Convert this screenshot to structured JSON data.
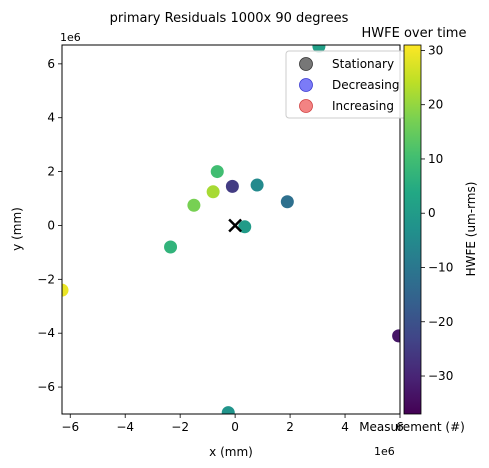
{
  "chart_data": {
    "type": "scatter",
    "title": "primary Residuals 1000x 90 degrees",
    "xlabel": "x (mm)",
    "ylabel": "y (mm)",
    "x_exponent_label": "1e6",
    "y_exponent_label": "1e6",
    "xlim": [
      -6.3,
      6.0
    ],
    "ylim": [
      -7.0,
      6.7
    ],
    "xticks": [
      -6,
      -4,
      -2,
      0,
      2,
      4,
      6
    ],
    "yticks": [
      -6,
      -4,
      -2,
      0,
      2,
      4,
      6
    ],
    "xtick_labels": [
      "−6",
      "−4",
      "−2",
      "0",
      "2",
      "4",
      "6"
    ],
    "ytick_labels": [
      "−6",
      "−4",
      "−2",
      "0",
      "2",
      "4",
      "6"
    ],
    "points": [
      {
        "x": 3.05,
        "y": 6.65,
        "value": 1
      },
      {
        "x": -0.65,
        "y": 2.0,
        "value": 10
      },
      {
        "x": -0.1,
        "y": 1.45,
        "value": -25
      },
      {
        "x": 0.8,
        "y": 1.5,
        "value": -5
      },
      {
        "x": -0.8,
        "y": 1.25,
        "value": 22
      },
      {
        "x": 1.9,
        "y": 0.88,
        "value": -12
      },
      {
        "x": -1.5,
        "y": 0.75,
        "value": 17
      },
      {
        "x": 0.35,
        "y": -0.05,
        "value": 0
      },
      {
        "x": -2.35,
        "y": -0.8,
        "value": 7
      },
      {
        "x": -6.3,
        "y": -2.4,
        "value": 29
      },
      {
        "x": 5.95,
        "y": -4.1,
        "value": -33
      },
      {
        "x": -0.25,
        "y": -6.95,
        "value": -2
      }
    ],
    "origin_marker": {
      "x": 0,
      "y": 0,
      "symbol": "×"
    },
    "legend": {
      "placement": "top-right",
      "entries": [
        {
          "label": "Stationary",
          "color": "#555555"
        },
        {
          "label": "Decreasing",
          "color": "#5a5af5"
        },
        {
          "label": "Increasing",
          "color": "#f06464"
        }
      ]
    },
    "colorbar": {
      "title": "HWFE over time",
      "label": "HWFE (um-rms)",
      "bottom_label": "Measurement (#)",
      "range": [
        -37,
        31
      ],
      "ticks": [
        30,
        20,
        10,
        0,
        -10,
        -20,
        -30
      ],
      "tick_labels": [
        "30",
        "20",
        "10",
        "0",
        "−10",
        "−20",
        "−30"
      ],
      "colormap": "viridis"
    }
  }
}
